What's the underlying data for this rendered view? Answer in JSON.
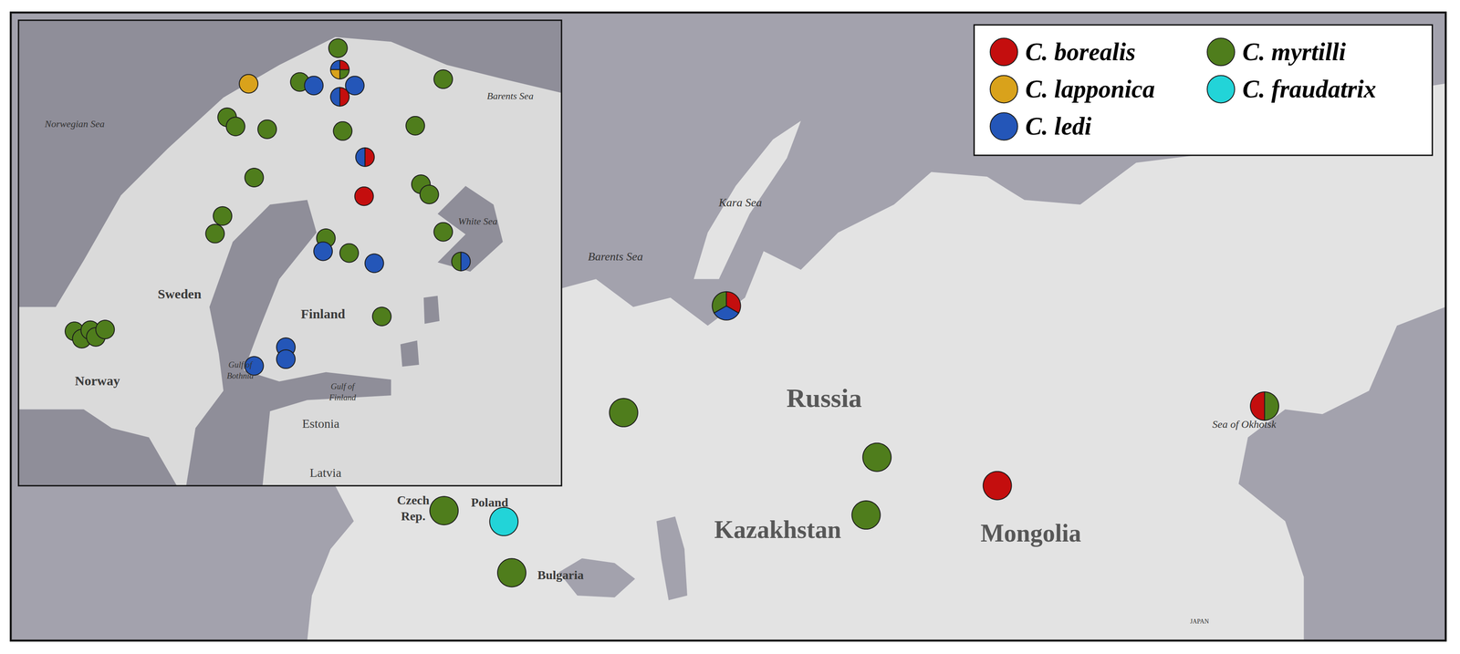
{
  "chart_data": {
    "type": "map",
    "legend": "top right",
    "tick_labels": false,
    "grid": false,
    "series": [
      {
        "name": "C. borealis",
        "color": "#c40e0e"
      },
      {
        "name": "C. lapponica",
        "color": "#d9a21b"
      },
      {
        "name": "C. ledi",
        "color": "#2456b8"
      },
      {
        "name": "C. myrtilli",
        "color": "#4f7d1c"
      },
      {
        "name": "C. fraudatrix",
        "color": "#22d4d8"
      }
    ],
    "xlim": [
      -56.6,
      180.6
    ],
    "ylim": [
      36.3,
      93.9
    ],
    "sites": [
      {
        "lon": 61.7,
        "lat": 67.0,
        "species": [
          "C. myrtilli",
          "C. ledi",
          "C. borealis"
        ]
      },
      {
        "lon": 44.7,
        "lat": 57.2,
        "species": [
          "C. myrtilli"
        ]
      },
      {
        "lon": 86.6,
        "lat": 53.1,
        "species": [
          "C. myrtilli"
        ]
      },
      {
        "lon": 84.8,
        "lat": 47.8,
        "species": [
          "C. myrtilli"
        ]
      },
      {
        "lon": 106.5,
        "lat": 50.5,
        "species": [
          "C. borealis"
        ]
      },
      {
        "lon": 150.7,
        "lat": 57.8,
        "species": [
          "C. borealis",
          "C. myrtilli"
        ]
      },
      {
        "lon": 15.0,
        "lat": 48.2,
        "species": [
          "C. myrtilli"
        ]
      },
      {
        "lon": 24.9,
        "lat": 47.2,
        "species": [
          "C. fraudatrix"
        ]
      },
      {
        "lon": 26.2,
        "lat": 42.5,
        "species": [
          "C. myrtilli"
        ]
      }
    ],
    "labels": [
      "Kara Sea",
      "Barents Sea",
      "Russia",
      "Kazakhstan",
      "Mongolia",
      "Sea of Okhotsk",
      "Czech\nRep.",
      "Poland",
      "Bulgaria",
      "JAPAN"
    ],
    "inset": {
      "xlim": [
        0.45,
        46.68
      ],
      "ylim": [
        57.81,
        71.01
      ],
      "sites": [
        {
          "lon": 27.65,
          "lat": 70.22,
          "species": [
            "C. myrtilli"
          ]
        },
        {
          "lon": 20.04,
          "lat": 69.21,
          "species": [
            "C. lapponica"
          ]
        },
        {
          "lon": 24.4,
          "lat": 69.26,
          "species": [
            "C. myrtilli"
          ]
        },
        {
          "lon": 25.59,
          "lat": 69.16,
          "species": [
            "C. ledi"
          ]
        },
        {
          "lon": 27.81,
          "lat": 69.61,
          "species": [
            "C. ledi",
            "C. lapponica",
            "C. myrtilli",
            "C. borealis"
          ]
        },
        {
          "lon": 29.08,
          "lat": 69.16,
          "species": [
            "C. ledi"
          ]
        },
        {
          "lon": 36.61,
          "lat": 69.34,
          "species": [
            "C. myrtilli"
          ]
        },
        {
          "lon": 27.81,
          "lat": 68.84,
          "species": [
            "C. ledi",
            "C. borealis"
          ]
        },
        {
          "lon": 18.21,
          "lat": 68.26,
          "species": [
            "C. myrtilli"
          ]
        },
        {
          "lon": 18.93,
          "lat": 68.0,
          "species": [
            "C. myrtilli"
          ]
        },
        {
          "lon": 21.62,
          "lat": 67.92,
          "species": [
            "C. myrtilli"
          ]
        },
        {
          "lon": 28.05,
          "lat": 67.87,
          "species": [
            "C. myrtilli"
          ]
        },
        {
          "lon": 34.23,
          "lat": 68.02,
          "species": [
            "C. myrtilli"
          ]
        },
        {
          "lon": 29.95,
          "lat": 67.13,
          "species": [
            "C. ledi",
            "C. borealis"
          ]
        },
        {
          "lon": 20.51,
          "lat": 66.55,
          "species": [
            "C. myrtilli"
          ]
        },
        {
          "lon": 29.87,
          "lat": 66.02,
          "species": [
            "C. borealis"
          ]
        },
        {
          "lon": 34.71,
          "lat": 66.36,
          "species": [
            "C. myrtilli"
          ]
        },
        {
          "lon": 35.42,
          "lat": 66.07,
          "species": [
            "C. myrtilli"
          ]
        },
        {
          "lon": 17.82,
          "lat": 65.46,
          "species": [
            "C. myrtilli"
          ]
        },
        {
          "lon": 17.18,
          "lat": 64.96,
          "species": [
            "C. myrtilli"
          ]
        },
        {
          "lon": 26.62,
          "lat": 64.83,
          "species": [
            "C. myrtilli"
          ]
        },
        {
          "lon": 26.38,
          "lat": 64.46,
          "species": [
            "C. ledi"
          ]
        },
        {
          "lon": 28.6,
          "lat": 64.41,
          "species": [
            "C. myrtilli"
          ]
        },
        {
          "lon": 30.74,
          "lat": 64.12,
          "species": [
            "C. ledi"
          ]
        },
        {
          "lon": 36.61,
          "lat": 65.01,
          "species": [
            "C. myrtilli"
          ]
        },
        {
          "lon": 38.12,
          "lat": 64.17,
          "species": [
            "C. myrtilli",
            "C. ledi"
          ]
        },
        {
          "lon": 31.38,
          "lat": 62.61,
          "species": [
            "C. myrtilli"
          ]
        },
        {
          "lon": 23.21,
          "lat": 61.74,
          "species": [
            "C. ledi"
          ]
        },
        {
          "lon": 23.21,
          "lat": 61.4,
          "species": [
            "C. ledi"
          ]
        },
        {
          "lon": 20.51,
          "lat": 61.21,
          "species": [
            "C. ledi"
          ]
        },
        {
          "lon": 5.21,
          "lat": 62.19,
          "species": [
            "C. myrtilli"
          ]
        },
        {
          "lon": 5.84,
          "lat": 61.98,
          "species": [
            "C. myrtilli"
          ]
        },
        {
          "lon": 6.56,
          "lat": 62.22,
          "species": [
            "C. myrtilli"
          ]
        },
        {
          "lon": 7.03,
          "lat": 62.03,
          "species": [
            "C. myrtilli"
          ]
        },
        {
          "lon": 7.82,
          "lat": 62.24,
          "species": [
            "C. myrtilli"
          ]
        }
      ],
      "labels": [
        "Barents Sea",
        "Norwegian Sea",
        "Sweden",
        "Finland",
        "Gulf of\nBothnia",
        "Gulf of\nFinland",
        "White Sea",
        "Norway",
        "Estonia",
        "Latvia"
      ]
    }
  }
}
